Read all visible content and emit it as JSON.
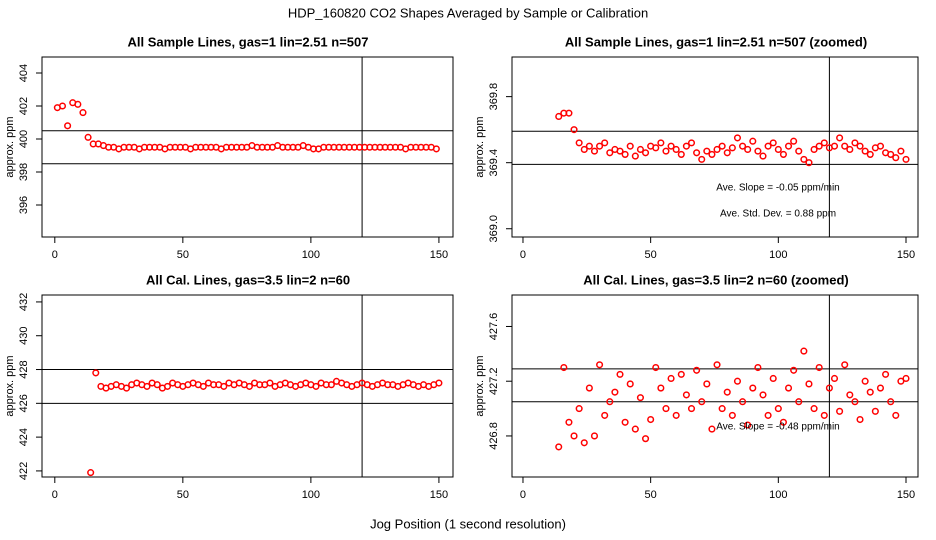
{
  "title": "HDP_160820  CO2 Shapes Averaged by Sample or Calibration",
  "xlabel": "Jog Position (1 second resolution)",
  "chart_data": [
    {
      "type": "scatter",
      "title": "All Sample Lines, gas=1 lin=2.51 n=507",
      "ylabel": "approx. ppm",
      "color": "#ff0000",
      "x": [
        1,
        3,
        5,
        7,
        9,
        11,
        13,
        15,
        17,
        19,
        21,
        23,
        25,
        27,
        29,
        31,
        33,
        35,
        37,
        39,
        41,
        43,
        45,
        47,
        49,
        51,
        53,
        55,
        57,
        59,
        61,
        63,
        65,
        67,
        69,
        71,
        73,
        75,
        77,
        79,
        81,
        83,
        85,
        87,
        89,
        91,
        93,
        95,
        97,
        99,
        101,
        103,
        105,
        107,
        109,
        111,
        113,
        115,
        117,
        119,
        121,
        123,
        125,
        127,
        129,
        131,
        133,
        135,
        137,
        139,
        141,
        143,
        145,
        147,
        149
      ],
      "values": [
        401.9,
        402.0,
        400.8,
        402.2,
        402.1,
        401.6,
        400.1,
        399.7,
        399.7,
        399.6,
        399.5,
        399.5,
        399.4,
        399.5,
        399.5,
        399.5,
        399.4,
        399.5,
        399.5,
        399.5,
        399.5,
        399.4,
        399.5,
        399.5,
        399.5,
        399.5,
        399.4,
        399.5,
        399.5,
        399.5,
        399.5,
        399.5,
        399.4,
        399.5,
        399.5,
        399.5,
        399.5,
        399.5,
        399.6,
        399.5,
        399.5,
        399.5,
        399.5,
        399.6,
        399.5,
        399.5,
        399.5,
        399.5,
        399.6,
        399.5,
        399.4,
        399.4,
        399.5,
        399.5,
        399.5,
        399.5,
        399.5,
        399.5,
        399.5,
        399.5,
        399.5,
        399.5,
        399.5,
        399.5,
        399.5,
        399.5,
        399.5,
        399.5,
        399.4,
        399.5,
        399.5,
        399.5,
        399.5,
        399.5,
        399.4
      ],
      "xlim": [
        -5,
        155.5
      ],
      "xticks": [
        0,
        50,
        100,
        150
      ],
      "ylim": [
        394.06,
        404.97
      ],
      "yticks": [
        396,
        398,
        400,
        402,
        404
      ],
      "hlines": [
        400.5,
        398.5
      ],
      "vlines": [
        120
      ]
    },
    {
      "type": "scatter",
      "title": "All Sample Lines, gas=1 lin=2.51 n=507 (zoomed)",
      "ylabel": "approx. ppm",
      "color": "#ff0000",
      "x": [
        14,
        16,
        18,
        20,
        22,
        24,
        26,
        28,
        30,
        32,
        34,
        36,
        38,
        40,
        42,
        44,
        46,
        48,
        50,
        52,
        54,
        56,
        58,
        60,
        62,
        64,
        66,
        68,
        70,
        72,
        74,
        76,
        78,
        80,
        82,
        84,
        86,
        88,
        90,
        92,
        94,
        96,
        98,
        100,
        102,
        104,
        106,
        108,
        110,
        112,
        114,
        116,
        118,
        120,
        122,
        124,
        126,
        128,
        130,
        132,
        134,
        136,
        138,
        140,
        142,
        144,
        146,
        148,
        150
      ],
      "values": [
        369.68,
        369.7,
        369.7,
        369.6,
        369.52,
        369.48,
        369.5,
        369.47,
        369.5,
        369.52,
        369.46,
        369.48,
        369.47,
        369.45,
        369.5,
        369.44,
        369.48,
        369.46,
        369.5,
        369.49,
        369.52,
        369.47,
        369.5,
        369.48,
        369.45,
        369.5,
        369.52,
        369.46,
        369.42,
        369.47,
        369.45,
        369.48,
        369.5,
        369.46,
        369.49,
        369.55,
        369.5,
        369.48,
        369.53,
        369.47,
        369.44,
        369.5,
        369.52,
        369.48,
        369.45,
        369.5,
        369.53,
        369.47,
        369.42,
        369.4,
        369.48,
        369.5,
        369.52,
        369.49,
        369.5,
        369.55,
        369.5,
        369.48,
        369.52,
        369.5,
        369.47,
        369.45,
        369.49,
        369.5,
        369.46,
        369.45,
        369.43,
        369.47,
        369.42
      ],
      "xlim": [
        -4.3,
        154.7
      ],
      "xticks": [
        0,
        50,
        100,
        150
      ],
      "ylim": [
        368.95,
        370.04
      ],
      "yticks": [
        {
          "value": 369,
          "label": "369.0"
        },
        369.4,
        369.8
      ],
      "hlines": [
        369.59,
        369.39
      ],
      "vlines": [
        120
      ],
      "annotations": [
        "Ave. Slope =  -0.05  ppm/min",
        "Ave. Std. Dev. =  0.88  ppm"
      ]
    },
    {
      "type": "scatter",
      "title": "All Cal. Lines, gas=3.5 lin=2 n=60",
      "ylabel": "approx. ppm",
      "color": "#ff0000",
      "x": [
        14,
        16,
        18,
        20,
        22,
        24,
        26,
        28,
        30,
        32,
        34,
        36,
        38,
        40,
        42,
        44,
        46,
        48,
        50,
        52,
        54,
        56,
        58,
        60,
        62,
        64,
        66,
        68,
        70,
        72,
        74,
        76,
        78,
        80,
        82,
        84,
        86,
        88,
        90,
        92,
        94,
        96,
        98,
        100,
        102,
        104,
        106,
        108,
        110,
        112,
        114,
        116,
        118,
        120,
        122,
        124,
        126,
        128,
        130,
        132,
        134,
        136,
        138,
        140,
        142,
        144,
        146,
        148,
        150
      ],
      "values": [
        421.9,
        427.8,
        427.0,
        426.9,
        427.0,
        427.1,
        427.0,
        426.9,
        427.1,
        427.2,
        427.1,
        427.0,
        427.2,
        427.1,
        426.9,
        427.0,
        427.2,
        427.1,
        427.0,
        427.1,
        427.2,
        427.1,
        427.0,
        427.2,
        427.1,
        427.1,
        427.0,
        427.2,
        427.1,
        427.2,
        427.1,
        427.0,
        427.2,
        427.1,
        427.1,
        427.2,
        427.0,
        427.1,
        427.2,
        427.1,
        427.0,
        427.1,
        427.2,
        427.1,
        427.0,
        427.2,
        427.1,
        427.1,
        427.3,
        427.2,
        427.1,
        427.0,
        427.1,
        427.2,
        427.1,
        427.0,
        427.1,
        427.2,
        427.1,
        427.1,
        427.0,
        427.1,
        427.2,
        427.1,
        427.0,
        427.1,
        427.0,
        427.1,
        427.2
      ],
      "xlim": [
        -5,
        155.5
      ],
      "xticks": [
        0,
        50,
        100,
        150
      ],
      "ylim": [
        421.64,
        432.41
      ],
      "yticks": [
        422,
        424,
        426,
        428,
        430,
        432
      ],
      "hlines": [
        428.0,
        426.0
      ],
      "vlines": [
        120
      ]
    },
    {
      "type": "scatter",
      "title": "All Cal. Lines, gas=3.5 lin=2 n=60 (zoomed)",
      "ylabel": "approx. ppm",
      "color": "#ff0000",
      "x": [
        14,
        16,
        18,
        20,
        22,
        24,
        26,
        28,
        30,
        32,
        34,
        36,
        38,
        40,
        42,
        44,
        46,
        48,
        50,
        52,
        54,
        56,
        58,
        60,
        62,
        64,
        66,
        68,
        70,
        72,
        74,
        76,
        78,
        80,
        82,
        84,
        86,
        88,
        90,
        92,
        94,
        96,
        98,
        100,
        102,
        104,
        106,
        108,
        110,
        112,
        114,
        116,
        118,
        120,
        122,
        124,
        126,
        128,
        130,
        132,
        134,
        136,
        138,
        140,
        142,
        144,
        146,
        148,
        150
      ],
      "values": [
        426.72,
        427.3,
        426.9,
        426.8,
        427.0,
        426.75,
        427.15,
        426.8,
        427.32,
        426.95,
        427.05,
        427.12,
        427.25,
        426.9,
        427.18,
        426.85,
        427.08,
        426.78,
        426.92,
        427.3,
        427.15,
        427.0,
        427.22,
        426.95,
        427.25,
        427.1,
        427.0,
        427.28,
        427.05,
        427.18,
        426.85,
        427.32,
        427.0,
        427.12,
        426.95,
        427.2,
        427.05,
        426.88,
        427.15,
        427.3,
        427.1,
        426.95,
        427.22,
        427.0,
        426.9,
        427.15,
        427.28,
        427.05,
        427.42,
        427.18,
        427.0,
        427.3,
        426.95,
        427.15,
        427.22,
        426.98,
        427.32,
        427.1,
        427.05,
        426.92,
        427.2,
        427.12,
        426.98,
        427.15,
        427.25,
        427.05,
        426.95,
        427.2,
        427.22
      ],
      "xlim": [
        -4.3,
        154.7
      ],
      "xticks": [
        0,
        50,
        100,
        150
      ],
      "ylim": [
        426.5,
        427.83
      ],
      "yticks": [
        426.8,
        427.2,
        427.6
      ],
      "hlines": [
        427.29,
        427.05
      ],
      "vlines": [
        120
      ],
      "annotations": [
        "Ave. Slope = -0.48 ppm/min"
      ]
    }
  ]
}
